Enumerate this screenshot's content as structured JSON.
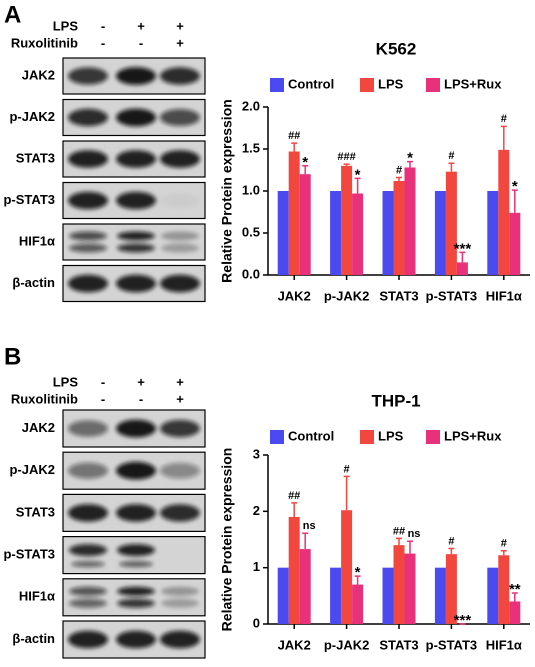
{
  "panels": [
    {
      "letter": "A",
      "treatments": [
        {
          "name": "LPS",
          "signs": [
            "-",
            "+",
            "+"
          ]
        },
        {
          "name": "Ruxolitinib",
          "signs": [
            "-",
            "-",
            "+"
          ]
        }
      ],
      "blots": [
        "JAK2",
        "p-JAK2",
        "STAT3",
        "p-STAT3",
        "HIF1α",
        "β-actin"
      ]
    },
    {
      "letter": "B",
      "treatments": [
        {
          "name": "LPS",
          "signs": [
            "-",
            "+",
            "+"
          ]
        },
        {
          "name": "Ruxolitinib",
          "signs": [
            "-",
            "-",
            "+"
          ]
        }
      ],
      "blots": [
        "JAK2",
        "p-JAK2",
        "STAT3",
        "p-STAT3",
        "HIF1α",
        "β-actin"
      ]
    }
  ],
  "chart_data": [
    {
      "type": "bar",
      "title": "K562",
      "y_label": "Relative Protein expression",
      "categories": [
        "JAK2",
        "p-JAK2",
        "STAT3",
        "p-STAT3",
        "HIF1α"
      ],
      "series": [
        {
          "name": "Control",
          "color": "#4a4af0",
          "values": [
            1,
            1,
            1,
            1,
            1
          ]
        },
        {
          "name": "LPS",
          "color": "#f2473f",
          "values": [
            1.47,
            1.3,
            1.12,
            1.23,
            1.49
          ],
          "errors": [
            0.1,
            0.02,
            0.04,
            0.1,
            0.28
          ],
          "labels": [
            "##",
            "###",
            "#",
            "#",
            "#"
          ]
        },
        {
          "name": "LPS+Rux",
          "color": "#e8317a",
          "values": [
            1.2,
            0.97,
            1.28,
            0.15,
            0.74
          ],
          "errors": [
            0.1,
            0.18,
            0.07,
            0.12,
            0.27
          ],
          "labels": [
            "*",
            "*",
            "*",
            "***",
            "*"
          ]
        }
      ],
      "ylim": [
        0,
        2
      ],
      "yticks": [
        {
          "value": 0,
          "label": "0.0"
        },
        0.5,
        {
          "value": 1,
          "label": "1.0"
        },
        1.5,
        {
          "value": 2,
          "label": "2.0"
        }
      ],
      "legend": "top",
      "grid": false
    },
    {
      "type": "bar",
      "title": "THP-1",
      "y_label": "Relative Protein expression",
      "categories": [
        "JAK2",
        "p-JAK2",
        "STAT3",
        "p-STAT3",
        "HIF1α"
      ],
      "series": [
        {
          "name": "Control",
          "color": "#4a4af0",
          "values": [
            1,
            1,
            1,
            1,
            1
          ]
        },
        {
          "name": "LPS",
          "color": "#f2473f",
          "values": [
            1.9,
            2.02,
            1.4,
            1.24,
            1.22
          ],
          "errors": [
            0.25,
            0.6,
            0.12,
            0.1,
            0.08
          ],
          "labels": [
            "##",
            "#",
            "##",
            "#",
            "#"
          ]
        },
        {
          "name": "LPS+Rux",
          "color": "#e8317a",
          "values": [
            1.33,
            0.7,
            1.25,
            0,
            0.4
          ],
          "errors": [
            0.28,
            0.15,
            0.22,
            0,
            0.15
          ],
          "labels": [
            "ns",
            "*",
            "ns",
            "***",
            "**"
          ]
        }
      ],
      "ylim": [
        0,
        3
      ],
      "yticks": [
        0,
        1,
        2,
        3
      ],
      "legend": "top",
      "grid": false
    }
  ]
}
